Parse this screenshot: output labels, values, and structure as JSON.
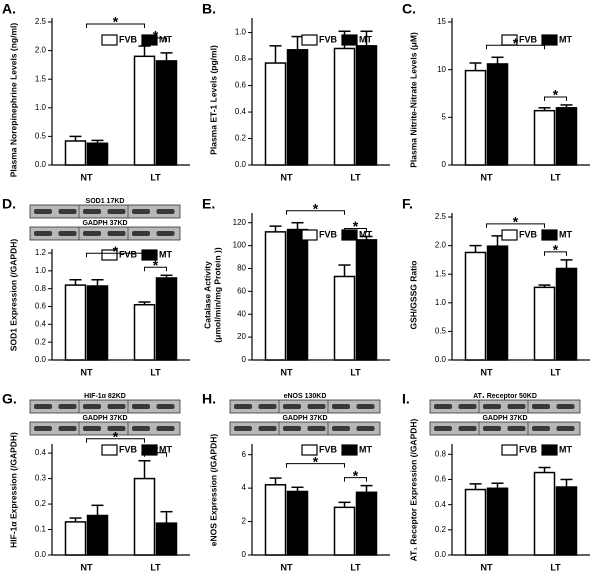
{
  "chart_data": [
    {
      "type": "bar",
      "panel_label": "A.",
      "y_label": [
        "Plasma Norepinephrine Levels (ng/ml)"
      ],
      "categories": [
        "NT",
        "LT"
      ],
      "series": [
        {
          "name": "FVB",
          "color": "#ffffff",
          "values": [
            0.42,
            1.9
          ],
          "errors": [
            0.08,
            0.18
          ]
        },
        {
          "name": "MT",
          "color": "#000000",
          "values": [
            0.38,
            1.82
          ],
          "errors": [
            0.05,
            0.14
          ]
        }
      ],
      "ylim": [
        0,
        2.5
      ],
      "yticks": [
        {
          "value": 0,
          "label": "0.0"
        },
        0.5,
        {
          "value": 1,
          "label": "1.0"
        },
        1.5,
        {
          "value": 2,
          "label": "2.0"
        },
        2.5
      ],
      "annotations": [
        "*",
        "*"
      ]
    },
    {
      "type": "bar",
      "panel_label": "B.",
      "y_label": [
        "Plasma ET-1 Levels (pg/ml)"
      ],
      "categories": [
        "NT",
        "LT"
      ],
      "series": [
        {
          "name": "FVB",
          "color": "#ffffff",
          "values": [
            0.77,
            0.88
          ],
          "errors": [
            0.13,
            0.13
          ]
        },
        {
          "name": "MT",
          "color": "#000000",
          "values": [
            0.87,
            0.9
          ],
          "errors": [
            0.1,
            0.11
          ]
        }
      ],
      "ylim": [
        0,
        1.08
      ],
      "yticks": [
        {
          "value": 0,
          "label": "0.0"
        },
        0.2,
        0.4,
        0.6,
        0.8,
        {
          "value": 1,
          "label": "1.0"
        }
      ]
    },
    {
      "type": "bar",
      "panel_label": "C.",
      "y_label": [
        "Plasma Nitrite-Nitrate Levels (μM)"
      ],
      "categories": [
        "NT",
        "LT"
      ],
      "series": [
        {
          "name": "FVB",
          "color": "#ffffff",
          "values": [
            9.9,
            5.7
          ],
          "errors": [
            0.8,
            0.3
          ]
        },
        {
          "name": "MT",
          "color": "#000000",
          "values": [
            10.6,
            6.0
          ],
          "errors": [
            0.7,
            0.3
          ]
        }
      ],
      "ylim": [
        0,
        15
      ],
      "yticks": [
        0,
        5,
        10,
        15
      ],
      "annotations": [
        "*",
        "*"
      ]
    },
    {
      "type": "bar",
      "panel_label": "D.",
      "y_label": [
        "SOD1 Expression (/GAPDH)"
      ],
      "categories": [
        "NT",
        "LT"
      ],
      "series": [
        {
          "name": "FVB",
          "color": "#ffffff",
          "values": [
            0.84,
            0.62
          ],
          "errors": [
            0.06,
            0.03
          ]
        },
        {
          "name": "MT",
          "color": "#000000",
          "values": [
            0.83,
            0.92
          ],
          "errors": [
            0.07,
            0.03
          ]
        }
      ],
      "ylim": [
        0,
        1.2
      ],
      "yticks": [
        {
          "value": 0,
          "label": "0.0"
        },
        0.2,
        0.4,
        0.6,
        0.8,
        {
          "value": 1,
          "label": "1.0"
        },
        1.2
      ],
      "annotations": [
        "*",
        "*"
      ],
      "blot_labels": [
        "SOD1  17KD",
        "GADPH 37KD"
      ]
    },
    {
      "type": "bar",
      "panel_label": "E.",
      "y_label": [
        "Catalase Activity",
        "(μmol/min/mg Protein ))"
      ],
      "categories": [
        "NT",
        "LT"
      ],
      "series": [
        {
          "name": "FVB",
          "color": "#ffffff",
          "values": [
            112,
            73
          ],
          "errors": [
            5,
            10
          ]
        },
        {
          "name": "MT",
          "color": "#000000",
          "values": [
            114,
            105
          ],
          "errors": [
            6,
            3
          ]
        }
      ],
      "ylim": [
        0,
        125
      ],
      "yticks": [
        0,
        20,
        40,
        60,
        80,
        100,
        120
      ],
      "annotations": [
        "*",
        "*"
      ]
    },
    {
      "type": "bar",
      "panel_label": "F.",
      "y_label": [
        "GSH/GSSG Ratio"
      ],
      "categories": [
        "NT",
        "LT"
      ],
      "series": [
        {
          "name": "FVB",
          "color": "#ffffff",
          "values": [
            1.88,
            1.27
          ],
          "errors": [
            0.12,
            0.04
          ]
        },
        {
          "name": "MT",
          "color": "#000000",
          "values": [
            1.99,
            1.6
          ],
          "errors": [
            0.18,
            0.15
          ]
        }
      ],
      "ylim": [
        0,
        2.5
      ],
      "yticks": [
        {
          "value": 0,
          "label": "0.0"
        },
        0.5,
        {
          "value": 1,
          "label": "1.0"
        },
        1.5,
        {
          "value": 2,
          "label": "2.0"
        },
        2.5
      ],
      "annotations": [
        "*",
        "*"
      ]
    },
    {
      "type": "bar",
      "panel_label": "G.",
      "y_label": [
        "HIF-1α Expression (/GAPDH)"
      ],
      "categories": [
        "NT",
        "LT"
      ],
      "series": [
        {
          "name": "FVB",
          "color": "#ffffff",
          "values": [
            0.13,
            0.3
          ],
          "errors": [
            0.015,
            0.07
          ]
        },
        {
          "name": "MT",
          "color": "#000000",
          "values": [
            0.155,
            0.125
          ],
          "errors": [
            0.04,
            0.045
          ]
        }
      ],
      "ylim": [
        0,
        0.42
      ],
      "yticks": [
        {
          "value": 0,
          "label": "0.0"
        },
        0.1,
        0.2,
        0.3,
        0.4
      ],
      "annotations": [
        "*",
        "*"
      ],
      "blot_labels": [
        "HIF-1α  82KD",
        "GADPH 37KD"
      ]
    },
    {
      "type": "bar",
      "panel_label": "H.",
      "y_label": [
        "eNOS Expression (/GAPDH)"
      ],
      "categories": [
        "NT",
        "LT"
      ],
      "series": [
        {
          "name": "FVB",
          "color": "#ffffff",
          "values": [
            4.2,
            2.85
          ],
          "errors": [
            0.4,
            0.3
          ]
        },
        {
          "name": "MT",
          "color": "#000000",
          "values": [
            3.8,
            3.75
          ],
          "errors": [
            0.25,
            0.4
          ]
        }
      ],
      "ylim": [
        0,
        6.4
      ],
      "yticks": [
        0,
        2,
        4,
        6
      ],
      "annotations": [
        "*",
        "*"
      ],
      "blot_labels": [
        "eNOS 130KD",
        "GADPH 37KD"
      ]
    },
    {
      "type": "bar",
      "panel_label": "I.",
      "y_label": [
        "AT₁ Receptor Expression (/GAPDH)"
      ],
      "categories": [
        "NT",
        "LT"
      ],
      "series": [
        {
          "name": "FVB",
          "color": "#ffffff",
          "values": [
            0.52,
            0.655
          ],
          "errors": [
            0.045,
            0.04
          ]
        },
        {
          "name": "MT",
          "color": "#000000",
          "values": [
            0.53,
            0.54
          ],
          "errors": [
            0.04,
            0.06
          ]
        }
      ],
      "ylim": [
        0,
        0.85
      ],
      "yticks": [
        {
          "value": 0,
          "label": "0.0"
        },
        0.2,
        0.4,
        0.6,
        0.8
      ],
      "blot_labels": [
        "AT₁ Receptor 50KD",
        "GADPH 37KD"
      ]
    }
  ]
}
